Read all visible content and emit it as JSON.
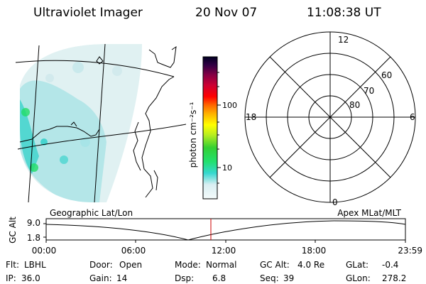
{
  "header": {
    "instrument": "Ultraviolet Imager",
    "date": "20 Nov 07",
    "time": "11:08:38 UT"
  },
  "colorbar": {
    "label": "photon cm⁻²s⁻¹",
    "ticks": [
      "100",
      "10"
    ]
  },
  "polar_plot": {
    "mlt_labels": [
      "12",
      "18",
      "6",
      "0"
    ],
    "lat_labels": [
      "60",
      "70",
      "80"
    ]
  },
  "orbit_plot": {
    "ylabel": "GC Alt",
    "y_ticks": [
      "9.0",
      "1.8"
    ],
    "left_title": "Geographic Lat/Lon",
    "right_title": "Apex MLat/MLT",
    "x_ticks": [
      "00:00",
      "06:00",
      "12:00",
      "18:00",
      "23:59"
    ]
  },
  "footer": {
    "row1": [
      {
        "label": "Flt:",
        "value": "LBHL"
      },
      {
        "label": "Door:",
        "value": "Open"
      },
      {
        "label": "Mode:",
        "value": "Normal"
      },
      {
        "label": "GC Alt:",
        "value": "4.0 Re"
      },
      {
        "label": "GLat:",
        "value": "-0.4"
      }
    ],
    "row2": [
      {
        "label": "IP:",
        "value": "36.0"
      },
      {
        "label": "Gain:",
        "value": "14"
      },
      {
        "label": "Dsp:",
        "value": "6.8"
      },
      {
        "label": "Seq:",
        "value": "39"
      },
      {
        "label": "GLon:",
        "value": "278.2"
      }
    ]
  },
  "colors": {
    "marker": "#cc0000",
    "aurora_faint": "#c8e6ea",
    "aurora_mid": "#2ad0c8",
    "aurora_bright": "#22dd66"
  }
}
